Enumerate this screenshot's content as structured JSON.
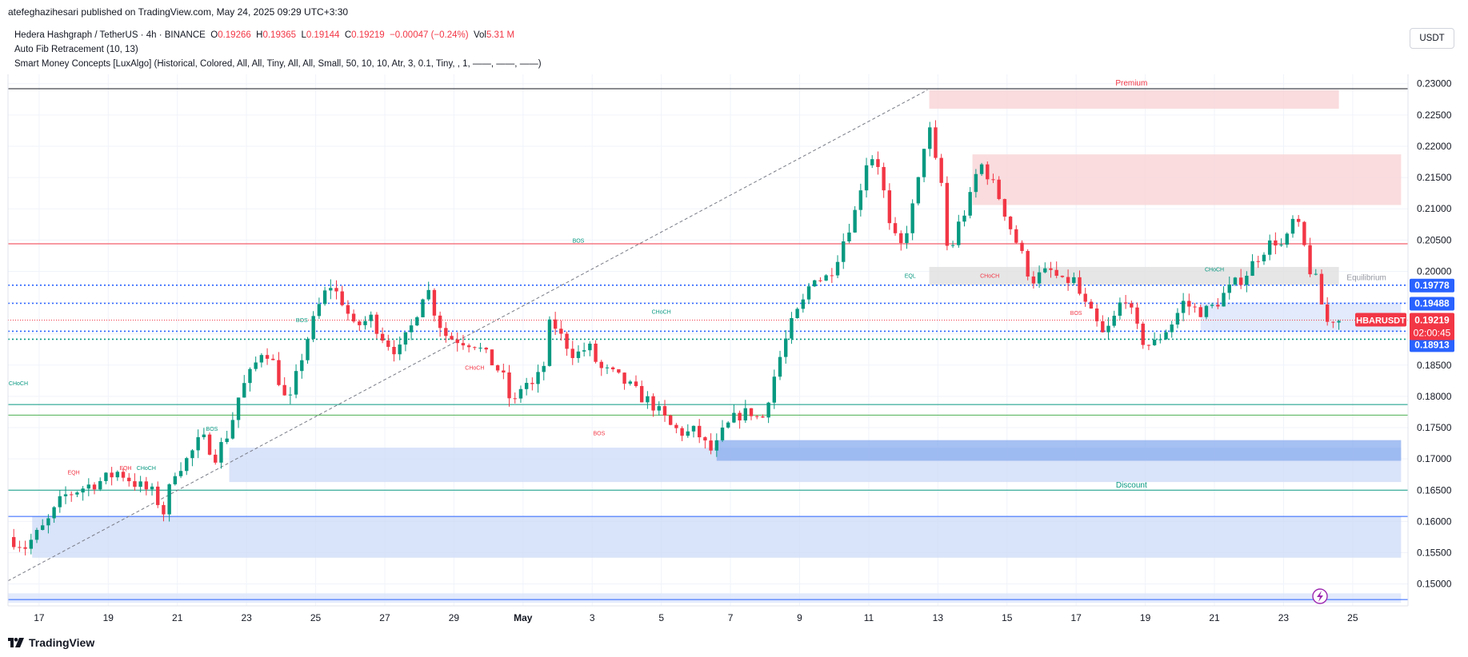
{
  "header": {
    "publish_line": "atefeghazihesari published on TradingView.com, May 24, 2025 09:29 UTC+3:30",
    "symbol_line_prefix": "Hedera Hashgraph / TetherUS · 4h · BINANCE",
    "ohlc": {
      "o_label": "O",
      "o": "0.19266",
      "h_label": "H",
      "h": "0.19365",
      "l_label": "L",
      "l": "0.19144",
      "c_label": "C",
      "c": "0.19219",
      "chg": "−0.00047 (−0.24%)",
      "vol_label": "Vol",
      "vol": "5.31 M"
    },
    "indicator_1": "Auto Fib Retracement (10, 13)",
    "indicator_2": "Smart Money Concepts [LuxAlgo] (Historical, Colored, All, All, Tiny, All, All, Small, 50, 10, 10, Atr, 3, 0.1, Tiny, , 1, ——, ——, ——)"
  },
  "currency_button": "USDT",
  "footer": {
    "brand": "TradingView"
  },
  "colors": {
    "bull": "#089981",
    "bear": "#f23645",
    "price_badge": "#f23645",
    "level_badge": "#2962ff",
    "premium_zone": "#f9d3d6",
    "discount_zone": "#cfdcf7",
    "equilibrium_zone": "#e0e0e0"
  },
  "chart_data": {
    "type": "candlestick",
    "symbol": "HBARUSDT",
    "interval": "4h",
    "ylim": [
      0.1465,
      0.2315
    ],
    "y_ticks": [
      "0.23000",
      "0.22500",
      "0.22000",
      "0.21500",
      "0.21000",
      "0.20500",
      "0.20000",
      "0.19500",
      "0.19000",
      "0.18500",
      "0.18000",
      "0.17500",
      "0.17000",
      "0.16500",
      "0.16000",
      "0.15500",
      "0.15000"
    ],
    "x_ticks": [
      {
        "label": "17",
        "day": 17
      },
      {
        "label": "19",
        "day": 19
      },
      {
        "label": "21",
        "day": 21
      },
      {
        "label": "23",
        "day": 23
      },
      {
        "label": "25",
        "day": 25
      },
      {
        "label": "27",
        "day": 27
      },
      {
        "label": "29",
        "day": 29
      },
      {
        "label": "May",
        "day": 31
      },
      {
        "label": "3",
        "day": 33
      },
      {
        "label": "5",
        "day": 35
      },
      {
        "label": "7",
        "day": 37
      },
      {
        "label": "9",
        "day": 39
      },
      {
        "label": "11",
        "day": 41
      },
      {
        "label": "13",
        "day": 43
      },
      {
        "label": "15",
        "day": 45
      },
      {
        "label": "17",
        "day": 47
      },
      {
        "label": "19",
        "day": 49
      },
      {
        "label": "21",
        "day": 51
      },
      {
        "label": "23",
        "day": 53
      },
      {
        "label": "25",
        "day": 55
      }
    ],
    "x_day_range": [
      16.1,
      56.6
    ],
    "close_path": [
      [
        16.1,
        0.1575
      ],
      [
        16.6,
        0.156
      ],
      [
        17.2,
        0.1595
      ],
      [
        17.7,
        0.164
      ],
      [
        18.3,
        0.1655
      ],
      [
        18.8,
        0.1665
      ],
      [
        19.3,
        0.168
      ],
      [
        19.8,
        0.166
      ],
      [
        20.3,
        0.1645
      ],
      [
        20.6,
        0.1615
      ],
      [
        20.9,
        0.168
      ],
      [
        21.3,
        0.17
      ],
      [
        21.7,
        0.1735
      ],
      [
        22.1,
        0.1705
      ],
      [
        22.5,
        0.1745
      ],
      [
        22.8,
        0.1805
      ],
      [
        23.2,
        0.1845
      ],
      [
        23.5,
        0.188
      ],
      [
        23.8,
        0.185
      ],
      [
        24.2,
        0.178
      ],
      [
        24.5,
        0.1845
      ],
      [
        24.8,
        0.19
      ],
      [
        25.1,
        0.1945
      ],
      [
        25.4,
        0.198
      ],
      [
        25.8,
        0.195
      ],
      [
        26.1,
        0.191
      ],
      [
        26.6,
        0.1925
      ],
      [
        27.0,
        0.189
      ],
      [
        27.4,
        0.187
      ],
      [
        27.8,
        0.1915
      ],
      [
        28.2,
        0.198
      ],
      [
        28.5,
        0.1925
      ],
      [
        28.8,
        0.1895
      ],
      [
        29.2,
        0.189
      ],
      [
        29.6,
        0.1885
      ],
      [
        30.0,
        0.186
      ],
      [
        30.4,
        0.1835
      ],
      [
        30.7,
        0.178
      ],
      [
        31.0,
        0.1825
      ],
      [
        31.3,
        0.1815
      ],
      [
        31.6,
        0.185
      ],
      [
        31.8,
        0.1925
      ],
      [
        32.1,
        0.1895
      ],
      [
        32.5,
        0.1865
      ],
      [
        32.9,
        0.188
      ],
      [
        33.2,
        0.1845
      ],
      [
        33.6,
        0.1835
      ],
      [
        34.0,
        0.182
      ],
      [
        34.4,
        0.18
      ],
      [
        34.7,
        0.179
      ],
      [
        35.0,
        0.177
      ],
      [
        35.3,
        0.175
      ],
      [
        35.7,
        0.174
      ],
      [
        36.0,
        0.1745
      ],
      [
        36.3,
        0.172
      ],
      [
        36.5,
        0.171
      ],
      [
        36.8,
        0.1745
      ],
      [
        37.2,
        0.177
      ],
      [
        37.6,
        0.1775
      ],
      [
        37.9,
        0.176
      ],
      [
        38.2,
        0.182
      ],
      [
        38.5,
        0.1875
      ],
      [
        38.8,
        0.192
      ],
      [
        39.1,
        0.195
      ],
      [
        39.4,
        0.1995
      ],
      [
        39.7,
        0.1985
      ],
      [
        40.0,
        0.201
      ],
      [
        40.3,
        0.2055
      ],
      [
        40.6,
        0.2095
      ],
      [
        40.8,
        0.2145
      ],
      [
        41.0,
        0.219
      ],
      [
        41.3,
        0.217
      ],
      [
        41.6,
        0.207
      ],
      [
        41.9,
        0.2035
      ],
      [
        42.2,
        0.2085
      ],
      [
        42.5,
        0.216
      ],
      [
        42.7,
        0.2245
      ],
      [
        42.9,
        0.218
      ],
      [
        43.1,
        0.214
      ],
      [
        43.3,
        0.202
      ],
      [
        43.6,
        0.2075
      ],
      [
        43.9,
        0.211
      ],
      [
        44.2,
        0.2175
      ],
      [
        44.5,
        0.215
      ],
      [
        44.8,
        0.2115
      ],
      [
        45.1,
        0.207
      ],
      [
        45.4,
        0.203
      ],
      [
        45.7,
        0.1985
      ],
      [
        46.0,
        0.1995
      ],
      [
        46.3,
        0.2
      ],
      [
        46.6,
        0.198
      ],
      [
        46.9,
        0.199
      ],
      [
        47.2,
        0.195
      ],
      [
        47.5,
        0.1925
      ],
      [
        47.8,
        0.1895
      ],
      [
        48.1,
        0.1925
      ],
      [
        48.4,
        0.1965
      ],
      [
        48.7,
        0.1915
      ],
      [
        48.9,
        0.189
      ],
      [
        49.2,
        0.188
      ],
      [
        49.5,
        0.19
      ],
      [
        49.8,
        0.192
      ],
      [
        50.1,
        0.195
      ],
      [
        50.4,
        0.194
      ],
      [
        50.7,
        0.1935
      ],
      [
        51.0,
        0.1945
      ],
      [
        51.3,
        0.1965
      ],
      [
        51.6,
        0.198
      ],
      [
        51.9,
        0.1995
      ],
      [
        52.2,
        0.202
      ],
      [
        52.5,
        0.204
      ],
      [
        52.8,
        0.205
      ],
      [
        53.0,
        0.2035
      ],
      [
        53.3,
        0.2085
      ],
      [
        53.5,
        0.206
      ],
      [
        53.8,
        0.1995
      ],
      [
        54.0,
        0.198
      ],
      [
        54.2,
        0.1915
      ],
      [
        54.4,
        0.1925
      ],
      [
        54.6,
        0.1922
      ]
    ],
    "current_price": {
      "symbol": "HBARUSDT",
      "price": "0.19219",
      "countdown": "02:00:45",
      "value": 0.19219
    },
    "price_levels": [
      {
        "label": "0.19778",
        "value": 0.19778,
        "style": "dotted",
        "color": "#2962ff"
      },
      {
        "label": "0.19488",
        "value": 0.19488,
        "style": "dotted",
        "color": "#2962ff"
      },
      {
        "label": "0.19042",
        "value": 0.19042,
        "style": "dotted",
        "color": "#2962ff"
      },
      {
        "label": "0.18913",
        "value": 0.18913,
        "style": "dotted",
        "color": "#089981"
      }
    ],
    "horizontal_lines": [
      {
        "value": 0.2292,
        "color": "#131722"
      },
      {
        "value": 0.2044,
        "color": "#f23645"
      },
      {
        "value": 0.177,
        "color": "#4caf50"
      },
      {
        "value": 0.1787,
        "color": "#089981"
      },
      {
        "value": 0.165,
        "color": "#089981"
      },
      {
        "value": 0.1608,
        "color": "#2962ff"
      },
      {
        "value": 0.1475,
        "color": "#2962ff"
      }
    ],
    "zones": [
      {
        "name": "premium",
        "label": "Premium",
        "from_day": 42.75,
        "to_day": 54.6,
        "y_top": 0.229,
        "y_bottom": 0.226,
        "color": "#f9d3d6"
      },
      {
        "name": "supply",
        "label": "",
        "from_day": 44.0,
        "to_day": 56.4,
        "y_top": 0.2187,
        "y_bottom": 0.2106,
        "color": "#f9d3d6"
      },
      {
        "name": "equilibrium",
        "label": "Equilibrium",
        "from_day": 42.75,
        "to_day": 54.6,
        "y_top": 0.2007,
        "y_bottom": 0.1978,
        "color": "#e0e0e0"
      },
      {
        "name": "discount",
        "label": "Discount",
        "from_day": 22.5,
        "to_day": 56.4,
        "y_top": 0.1718,
        "y_bottom": 0.1663,
        "color": "#cfdcf7"
      },
      {
        "name": "demand-1",
        "label": "",
        "from_day": 36.6,
        "to_day": 56.4,
        "y_top": 0.173,
        "y_bottom": 0.1697,
        "color": "#8fb0ef"
      },
      {
        "name": "demand-2",
        "label": "",
        "from_day": 16.8,
        "to_day": 56.4,
        "y_top": 0.1608,
        "y_bottom": 0.1542,
        "color": "#cfdcf7"
      },
      {
        "name": "ob-right",
        "label": "",
        "from_day": 50.6,
        "to_day": 56.4,
        "y_top": 0.195,
        "y_bottom": 0.1903,
        "color": "#dbe5fb"
      },
      {
        "name": "bottom-band",
        "label": "",
        "from_day": 16.1,
        "to_day": 56.4,
        "y_top": 0.1485,
        "y_bottom": 0.147,
        "color": "#dbe5fb"
      }
    ],
    "structure_labels": [
      {
        "text": "BOS",
        "day": 32.6,
        "y": 0.2046,
        "color": "#089981"
      },
      {
        "text": "BOS",
        "day": 24.6,
        "y": 0.1919,
        "color": "#089981"
      },
      {
        "text": "BOS",
        "day": 22.0,
        "y": 0.1745,
        "color": "#089981"
      },
      {
        "text": "CHoCH",
        "day": 16.4,
        "y": 0.1818,
        "color": "#089981"
      },
      {
        "text": "EQH",
        "day": 18.0,
        "y": 0.1675,
        "color": "#f23645"
      },
      {
        "text": "EQH",
        "day": 19.5,
        "y": 0.1682,
        "color": "#f23645"
      },
      {
        "text": "CHoCH",
        "day": 20.1,
        "y": 0.1682,
        "color": "#089981"
      },
      {
        "text": "CHoCH",
        "day": 29.6,
        "y": 0.1843,
        "color": "#f23645"
      },
      {
        "text": "CHoCH",
        "day": 35.0,
        "y": 0.1932,
        "color": "#089981"
      },
      {
        "text": "BOS",
        "day": 33.2,
        "y": 0.1738,
        "color": "#f23645"
      },
      {
        "text": "EQL",
        "day": 42.2,
        "y": 0.199,
        "color": "#089981"
      },
      {
        "text": "CHoCH",
        "day": 44.5,
        "y": 0.199,
        "color": "#f23645"
      },
      {
        "text": "BOS",
        "day": 47.0,
        "y": 0.193,
        "color": "#f23645"
      },
      {
        "text": "CHoCH",
        "day": 51.0,
        "y": 0.2,
        "color": "#089981"
      }
    ],
    "zone_labels": [
      {
        "text": "Premium",
        "day": 48.6,
        "y": 0.2297,
        "color": "#f23645"
      },
      {
        "text": "Equilibrium",
        "day": 55.4,
        "y": 0.1986,
        "color": "#9598a1"
      },
      {
        "text": "Discount",
        "day": 48.6,
        "y": 0.1654,
        "color": "#089981"
      }
    ]
  }
}
